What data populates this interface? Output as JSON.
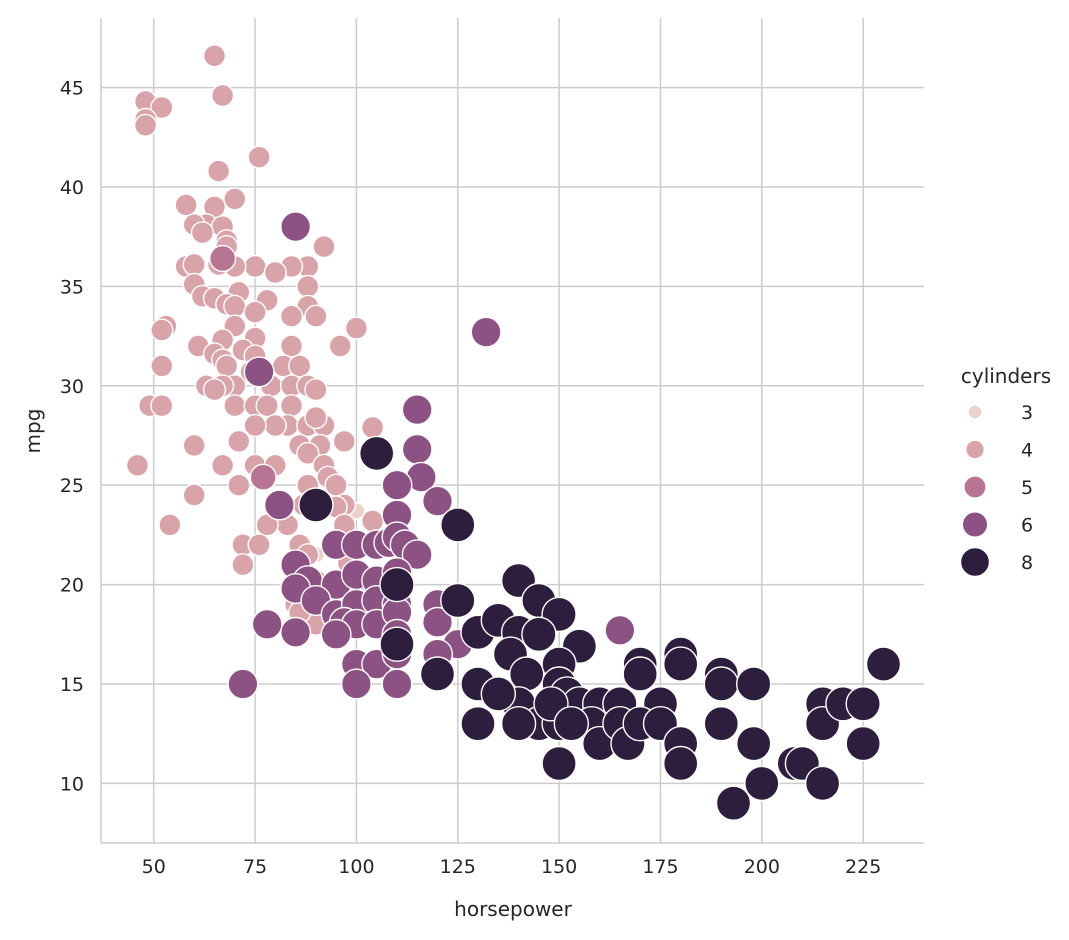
{
  "chart_data": {
    "type": "scatter",
    "title": "",
    "xlabel": "horsepower",
    "ylabel": "mpg",
    "xlim": [
      37,
      240
    ],
    "ylim": [
      7,
      48.5
    ],
    "xticks": [
      50,
      75,
      100,
      125,
      150,
      175,
      200,
      225
    ],
    "yticks": [
      10,
      15,
      20,
      25,
      30,
      35,
      40,
      45
    ],
    "grid": true,
    "legend": {
      "title": "cylinders",
      "placement": "right",
      "entries": [
        {
          "label": "3",
          "cylinders": 3
        },
        {
          "label": "4",
          "cylinders": 4
        },
        {
          "label": "5",
          "cylinders": 5
        },
        {
          "label": "6",
          "cylinders": 6
        },
        {
          "label": "8",
          "cylinders": 8
        }
      ]
    },
    "hue_colors": {
      "3": "#edd1cb",
      "4": "#d9a3aa",
      "5": "#b77493",
      "6": "#8c5283",
      "8": "#2d1e3e"
    },
    "size_scale": {
      "3": 0.48,
      "4": 0.64,
      "5": 0.76,
      "6": 0.87,
      "8": 1.0
    },
    "columns": [
      "horsepower",
      "mpg",
      "cylinders"
    ],
    "points": [
      [
        65,
        46.6,
        4
      ],
      [
        67,
        44.6,
        4
      ],
      [
        48,
        44.3,
        4
      ],
      [
        52,
        44.0,
        4
      ],
      [
        48,
        43.4,
        4
      ],
      [
        48,
        43.1,
        4
      ],
      [
        76,
        41.5,
        4
      ],
      [
        66,
        40.8,
        4
      ],
      [
        70,
        39.4,
        4
      ],
      [
        58,
        39.1,
        4
      ],
      [
        65,
        39.0,
        4
      ],
      [
        63,
        38.1,
        4
      ],
      [
        67,
        38.0,
        4
      ],
      [
        60,
        38.1,
        4
      ],
      [
        62,
        37.7,
        4
      ],
      [
        68,
        37.3,
        4
      ],
      [
        68,
        37.0,
        4
      ],
      [
        92,
        37.0,
        4
      ],
      [
        67,
        36.4,
        4
      ],
      [
        88,
        36.0,
        4
      ],
      [
        75,
        36.0,
        4
      ],
      [
        58,
        36.0,
        4
      ],
      [
        70,
        36.0,
        4
      ],
      [
        84,
        36.0,
        4
      ],
      [
        60,
        36.1,
        4
      ],
      [
        66,
        36.1,
        4
      ],
      [
        80,
        35.7,
        4
      ],
      [
        60,
        35.1,
        4
      ],
      [
        88,
        35.0,
        4
      ],
      [
        71,
        34.7,
        4
      ],
      [
        62,
        34.5,
        4
      ],
      [
        78,
        34.3,
        4
      ],
      [
        65,
        34.4,
        4
      ],
      [
        68,
        34.1,
        4
      ],
      [
        70,
        34.0,
        4
      ],
      [
        88,
        34.0,
        4
      ],
      [
        90,
        33.5,
        4
      ],
      [
        75,
        33.7,
        4
      ],
      [
        84,
        33.5,
        4
      ],
      [
        53,
        33.0,
        4
      ],
      [
        70,
        33.0,
        4
      ],
      [
        100,
        32.9,
        4
      ],
      [
        52,
        32.8,
        4
      ],
      [
        75,
        32.4,
        4
      ],
      [
        67,
        32.3,
        4
      ],
      [
        61,
        32.0,
        4
      ],
      [
        96,
        32.0,
        4
      ],
      [
        84,
        32.0,
        4
      ],
      [
        72,
        31.8,
        4
      ],
      [
        65,
        31.6,
        4
      ],
      [
        75,
        31.5,
        4
      ],
      [
        67,
        31.3,
        4
      ],
      [
        52,
        31.0,
        4
      ],
      [
        68,
        31.0,
        4
      ],
      [
        82,
        31.0,
        4
      ],
      [
        86,
        31.0,
        4
      ],
      [
        74,
        30.7,
        4
      ],
      [
        76,
        30.5,
        4
      ],
      [
        63,
        30.0,
        4
      ],
      [
        70,
        30.0,
        4
      ],
      [
        67,
        30.0,
        4
      ],
      [
        79,
        30.0,
        4
      ],
      [
        84,
        30.0,
        4
      ],
      [
        88,
        30.0,
        4
      ],
      [
        65,
        29.8,
        4
      ],
      [
        90,
        29.8,
        4
      ],
      [
        49,
        29.0,
        4
      ],
      [
        52,
        29.0,
        4
      ],
      [
        70,
        29.0,
        4
      ],
      [
        75,
        29.0,
        4
      ],
      [
        78,
        29.0,
        4
      ],
      [
        84,
        29.0,
        4
      ],
      [
        83,
        28.0,
        4
      ],
      [
        80,
        28.0,
        4
      ],
      [
        88,
        28.0,
        4
      ],
      [
        92,
        28.0,
        4
      ],
      [
        75,
        28.0,
        4
      ],
      [
        104,
        27.9,
        4
      ],
      [
        90,
        28.4,
        4
      ],
      [
        71,
        27.2,
        4
      ],
      [
        91,
        27.0,
        4
      ],
      [
        97,
        27.2,
        4
      ],
      [
        60,
        27.0,
        4
      ],
      [
        86,
        27.0,
        4
      ],
      [
        88,
        26.6,
        4
      ],
      [
        46,
        26.0,
        4
      ],
      [
        67,
        26.0,
        4
      ],
      [
        75,
        26.0,
        4
      ],
      [
        80,
        26.0,
        4
      ],
      [
        92,
        26.0,
        4
      ],
      [
        93,
        25.4,
        4
      ],
      [
        95,
        25.0,
        4
      ],
      [
        97,
        24.0,
        4
      ],
      [
        88,
        25.0,
        4
      ],
      [
        71,
        25.0,
        4
      ],
      [
        90,
        24.3,
        4
      ],
      [
        60,
        24.5,
        4
      ],
      [
        87,
        24.0,
        4
      ],
      [
        95,
        23.9,
        4
      ],
      [
        97,
        23.0,
        4
      ],
      [
        54,
        23.0,
        4
      ],
      [
        83,
        23.0,
        4
      ],
      [
        78,
        23.0,
        4
      ],
      [
        104,
        23.2,
        4
      ],
      [
        86,
        22.0,
        4
      ],
      [
        72,
        22.0,
        4
      ],
      [
        76,
        22.0,
        4
      ],
      [
        96,
        22.0,
        4
      ],
      [
        88,
        21.5,
        4
      ],
      [
        98,
        21.1,
        4
      ],
      [
        72,
        21.0,
        4
      ],
      [
        88,
        20.0,
        4
      ],
      [
        90,
        20.2,
        4
      ],
      [
        110,
        20.0,
        4
      ],
      [
        85,
        19.0,
        4
      ],
      [
        88,
        19.0,
        4
      ],
      [
        90,
        18.0,
        4
      ],
      [
        86,
        18.6,
        4
      ],
      [
        100,
        23.7,
        3
      ],
      [
        110,
        18.0,
        3
      ],
      [
        90,
        21.5,
        3
      ],
      [
        97,
        23.0,
        3
      ],
      [
        77,
        25.4,
        5
      ],
      [
        103,
        20.3,
        5
      ],
      [
        67,
        36.4,
        5
      ],
      [
        85,
        38.0,
        6
      ],
      [
        132,
        32.7,
        6
      ],
      [
        76,
        30.7,
        6
      ],
      [
        115,
        28.8,
        6
      ],
      [
        115,
        26.8,
        6
      ],
      [
        116,
        25.4,
        6
      ],
      [
        110,
        25.0,
        6
      ],
      [
        120,
        24.2,
        6
      ],
      [
        81,
        24.0,
        6
      ],
      [
        110,
        23.5,
        6
      ],
      [
        95,
        22.0,
        6
      ],
      [
        100,
        22.0,
        6
      ],
      [
        105,
        22.0,
        6
      ],
      [
        108,
        22.1,
        6
      ],
      [
        110,
        22.4,
        6
      ],
      [
        112,
        22.0,
        6
      ],
      [
        115,
        21.5,
        6
      ],
      [
        85,
        21.0,
        6
      ],
      [
        88,
        20.2,
        6
      ],
      [
        95,
        20.0,
        6
      ],
      [
        100,
        20.5,
        6
      ],
      [
        105,
        20.2,
        6
      ],
      [
        110,
        20.6,
        6
      ],
      [
        85,
        19.8,
        6
      ],
      [
        90,
        19.2,
        6
      ],
      [
        95,
        18.5,
        6
      ],
      [
        100,
        19.0,
        6
      ],
      [
        105,
        19.2,
        6
      ],
      [
        110,
        19.0,
        6
      ],
      [
        120,
        19.0,
        6
      ],
      [
        78,
        18.0,
        6
      ],
      [
        97,
        18.1,
        6
      ],
      [
        100,
        18.0,
        6
      ],
      [
        105,
        18.0,
        6
      ],
      [
        110,
        18.6,
        6
      ],
      [
        120,
        18.1,
        6
      ],
      [
        85,
        17.6,
        6
      ],
      [
        95,
        17.5,
        6
      ],
      [
        110,
        17.5,
        6
      ],
      [
        125,
        17.0,
        6
      ],
      [
        100,
        16.0,
        6
      ],
      [
        105,
        16.0,
        6
      ],
      [
        110,
        16.5,
        6
      ],
      [
        120,
        16.5,
        6
      ],
      [
        165,
        17.7,
        6
      ],
      [
        72,
        15.0,
        6
      ],
      [
        100,
        15.0,
        6
      ],
      [
        110,
        15.0,
        6
      ],
      [
        105,
        26.6,
        8
      ],
      [
        90,
        24.0,
        8
      ],
      [
        125,
        23.0,
        8
      ],
      [
        140,
        20.2,
        8
      ],
      [
        125,
        19.2,
        8
      ],
      [
        145,
        19.2,
        8
      ],
      [
        150,
        18.5,
        8
      ],
      [
        110,
        20.0,
        8
      ],
      [
        130,
        17.6,
        8
      ],
      [
        135,
        18.2,
        8
      ],
      [
        140,
        17.6,
        8
      ],
      [
        145,
        17.5,
        8
      ],
      [
        155,
        16.9,
        8
      ],
      [
        110,
        17.0,
        8
      ],
      [
        120,
        15.5,
        8
      ],
      [
        130,
        15.0,
        8
      ],
      [
        138,
        16.5,
        8
      ],
      [
        142,
        15.5,
        8
      ],
      [
        150,
        16.0,
        8
      ],
      [
        150,
        15.0,
        8
      ],
      [
        152,
        14.5,
        8
      ],
      [
        155,
        14.0,
        8
      ],
      [
        160,
        14.0,
        8
      ],
      [
        165,
        14.0,
        8
      ],
      [
        170,
        16.0,
        8
      ],
      [
        170,
        15.5,
        8
      ],
      [
        175,
        14.0,
        8
      ],
      [
        180,
        16.5,
        8
      ],
      [
        180,
        16.0,
        8
      ],
      [
        190,
        15.5,
        8
      ],
      [
        190,
        15.0,
        8
      ],
      [
        198,
        15.0,
        8
      ],
      [
        130,
        13.0,
        8
      ],
      [
        140,
        14.0,
        8
      ],
      [
        145,
        13.0,
        8
      ],
      [
        150,
        13.0,
        8
      ],
      [
        158,
        13.0,
        8
      ],
      [
        160,
        12.0,
        8
      ],
      [
        165,
        13.0,
        8
      ],
      [
        167,
        12.0,
        8
      ],
      [
        170,
        13.0,
        8
      ],
      [
        175,
        13.0,
        8
      ],
      [
        180,
        12.0,
        8
      ],
      [
        180,
        11.0,
        8
      ],
      [
        190,
        13.0,
        8
      ],
      [
        198,
        12.0,
        8
      ],
      [
        150,
        11.0,
        8
      ],
      [
        140,
        13.0,
        8
      ],
      [
        193,
        9.0,
        8
      ],
      [
        200,
        10.0,
        8
      ],
      [
        208,
        11.0,
        8
      ],
      [
        210,
        11.0,
        8
      ],
      [
        215,
        14.0,
        8
      ],
      [
        215,
        13.0,
        8
      ],
      [
        215,
        10.0,
        8
      ],
      [
        220,
        14.0,
        8
      ],
      [
        225,
        14.0,
        8
      ],
      [
        225,
        12.0,
        8
      ],
      [
        230,
        16.0,
        8
      ],
      [
        135,
        14.5,
        8
      ],
      [
        148,
        14.0,
        8
      ],
      [
        153,
        13.0,
        8
      ]
    ]
  }
}
